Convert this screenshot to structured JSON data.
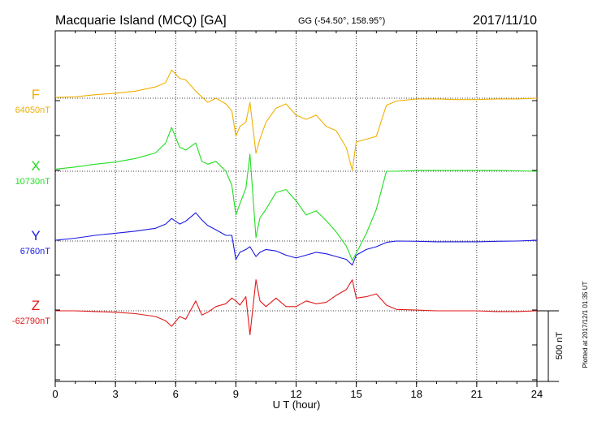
{
  "header": {
    "station": "Macquarie Island (MCQ)  [GA]",
    "coords": "GG (-54.50°, 158.95°)",
    "date": "2017/11/10"
  },
  "side_note": "Plotted at 2017/12/1 01:35 UT",
  "scale_label": "500 nT",
  "chart_data": {
    "type": "line",
    "title": "Macquarie Island (MCQ)  [GA]",
    "xlabel": "U T (hour)",
    "ylabel": "",
    "xlim": [
      0,
      24
    ],
    "xticks": [
      "0",
      "3",
      "6",
      "9",
      "12",
      "15",
      "18",
      "21",
      "24"
    ],
    "scale_bar_nT": 500,
    "grid": true,
    "series": [
      {
        "name": "F",
        "baseline_label": "64050nT",
        "baseline_nT": 64050,
        "color": "#f0b000",
        "x": [
          0,
          1,
          2,
          3,
          4,
          5,
          5.5,
          5.8,
          6.2,
          6.5,
          7,
          7.3,
          7.6,
          8,
          8.5,
          8.8,
          9,
          9.2,
          9.5,
          9.7,
          10,
          10.2,
          10.5,
          11,
          11.5,
          12,
          12.5,
          13,
          13.5,
          14,
          14.5,
          14.8,
          15,
          15.5,
          16,
          16.5,
          17,
          18,
          19,
          20,
          21,
          22,
          23,
          24
        ],
        "y": [
          64055,
          64060,
          64075,
          64085,
          64100,
          64130,
          64160,
          64250,
          64190,
          64180,
          64100,
          64060,
          64020,
          64050,
          64010,
          63960,
          63780,
          63850,
          63880,
          64020,
          63660,
          63760,
          63880,
          63980,
          64010,
          63930,
          63900,
          63930,
          63850,
          63820,
          63700,
          63540,
          63740,
          63760,
          63780,
          64000,
          64030,
          64045,
          64045,
          64040,
          64040,
          64045,
          64045,
          64050
        ]
      },
      {
        "name": "X",
        "baseline_label": "10730nT",
        "baseline_nT": 10730,
        "color": "#22dd22",
        "x": [
          0,
          1,
          2,
          3,
          4,
          5,
          5.5,
          5.8,
          6.2,
          6.5,
          7,
          7.3,
          7.6,
          8,
          8.5,
          8.8,
          9,
          9.2,
          9.5,
          9.7,
          10,
          10.2,
          10.5,
          11,
          11.5,
          12,
          12.5,
          13,
          13.5,
          14,
          14.5,
          14.8,
          15,
          15.5,
          16,
          16.5,
          17,
          18,
          19,
          20,
          21,
          22,
          23,
          24
        ],
        "y": [
          10745,
          10760,
          10780,
          10795,
          10820,
          10860,
          10930,
          11040,
          10900,
          10880,
          10930,
          10800,
          10780,
          10800,
          10730,
          10630,
          10420,
          10500,
          10610,
          10850,
          10260,
          10400,
          10460,
          10580,
          10600,
          10520,
          10420,
          10450,
          10380,
          10300,
          10200,
          10100,
          10150,
          10290,
          10460,
          10730,
          10730,
          10735,
          10735,
          10735,
          10735,
          10735,
          10733,
          10730
        ]
      },
      {
        "name": "Y",
        "baseline_label": "6760nT",
        "baseline_nT": 6760,
        "color": "#1a1ae0",
        "x": [
          0,
          1,
          2,
          3,
          4,
          5,
          5.5,
          5.8,
          6.2,
          6.5,
          7,
          7.3,
          7.6,
          8,
          8.5,
          8.8,
          9,
          9.2,
          9.5,
          9.7,
          10,
          10.2,
          10.5,
          11,
          11.5,
          12,
          12.5,
          13,
          13.5,
          14,
          14.5,
          14.8,
          15,
          15.5,
          16,
          16.5,
          17,
          18,
          19,
          20,
          21,
          22,
          23,
          24
        ],
        "y": [
          6765,
          6780,
          6800,
          6815,
          6830,
          6850,
          6880,
          6920,
          6880,
          6900,
          6960,
          6910,
          6870,
          6840,
          6800,
          6800,
          6630,
          6680,
          6700,
          6720,
          6650,
          6680,
          6700,
          6690,
          6660,
          6640,
          6660,
          6680,
          6670,
          6650,
          6630,
          6590,
          6660,
          6700,
          6720,
          6750,
          6760,
          6758,
          6755,
          6755,
          6755,
          6758,
          6760,
          6765
        ]
      },
      {
        "name": "Z",
        "baseline_label": "-62790nT",
        "baseline_nT": -62790,
        "color": "#e01a1a",
        "x": [
          0,
          1,
          2,
          3,
          4,
          5,
          5.5,
          5.8,
          6.2,
          6.5,
          7,
          7.3,
          7.6,
          8,
          8.5,
          8.8,
          9,
          9.2,
          9.5,
          9.7,
          10,
          10.2,
          10.5,
          11,
          11.5,
          12,
          12.5,
          13,
          13.5,
          14,
          14.5,
          14.8,
          15,
          15.5,
          16,
          16.5,
          17,
          18,
          19,
          20,
          21,
          22,
          23,
          24
        ],
        "y": [
          -62790,
          -62790,
          -62795,
          -62800,
          -62810,
          -62830,
          -62860,
          -62900,
          -62830,
          -62850,
          -62720,
          -62820,
          -62800,
          -62760,
          -62740,
          -62700,
          -62720,
          -62750,
          -62690,
          -62960,
          -62570,
          -62720,
          -62760,
          -62700,
          -62760,
          -62760,
          -62720,
          -62740,
          -62730,
          -62680,
          -62640,
          -62570,
          -62700,
          -62690,
          -62670,
          -62750,
          -62780,
          -62785,
          -62790,
          -62790,
          -62790,
          -62795,
          -62795,
          -62790
        ]
      }
    ]
  }
}
